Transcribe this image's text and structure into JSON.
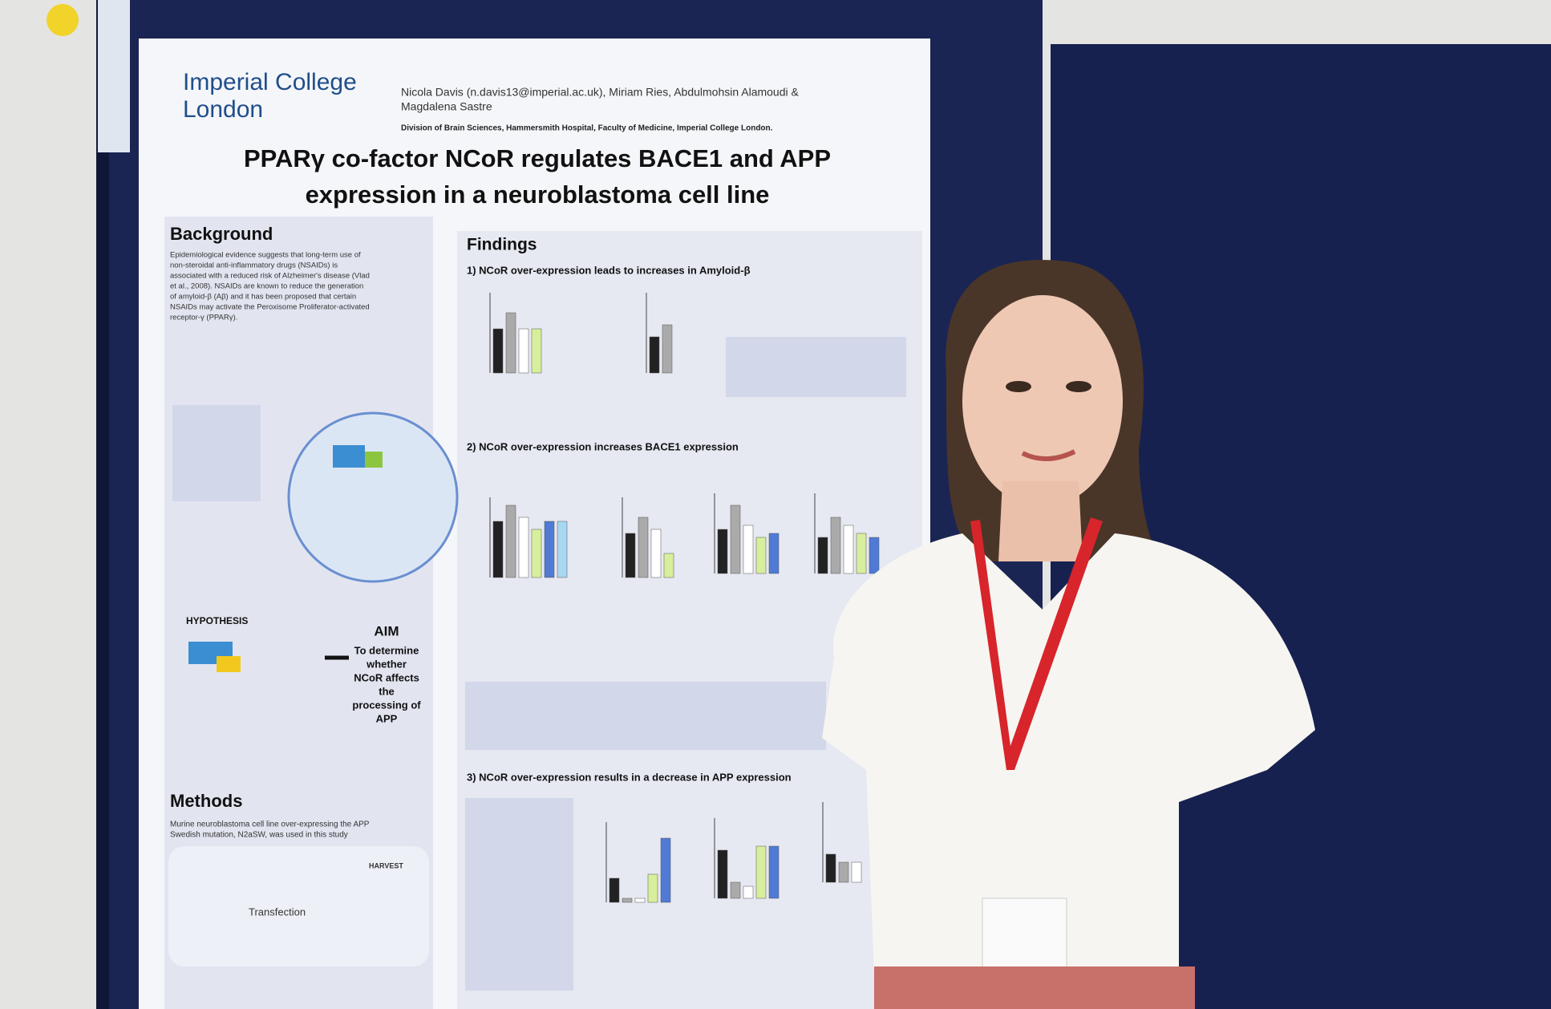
{
  "poster": {
    "logo": [
      "Imperial College",
      "London"
    ],
    "authors": [
      "Nicola Davis (n.davis13@imperial.ac.uk), Miriam Ries, Abdulmohsin Alamoudi &",
      "Magdalena Sastre"
    ],
    "affiliation": "Division of Brain Sciences, Hammersmith Hospital, Faculty of Medicine, Imperial College London.",
    "title": [
      "PPARγ co-factor NCoR regulates BACE1 and APP",
      "expression in a neuroblastoma cell line"
    ],
    "background": {
      "heading": "Background",
      "text": [
        "Epidemiological evidence suggests that long-term use of",
        "non-steroidal anti-inflammatory drugs (NSAIDs) is",
        "associated with a reduced risk of Alzheimer's disease (Vlad",
        "et al., 2008). NSAIDs are known to reduce the generation",
        "of amyloid-β (Aβ) and it has been proposed that certain",
        "NSAIDs may activate the Peroxisome Proliferator-activated",
        "receptor-γ (PPARγ)."
      ]
    },
    "hypothesis": "HYPOTHESIS",
    "aim": {
      "heading": "AIM",
      "text": [
        "To determine",
        "whether",
        "NCoR affects",
        "the",
        "processing of",
        "APP"
      ]
    },
    "methods": {
      "heading": "Methods",
      "text": [
        "Murine neuroblastoma cell line over-expressing the APP",
        "Swedish mutation, N2aSW, was used in this study"
      ],
      "transfection": "Transfection",
      "harvest": "HARVEST"
    },
    "findings": {
      "heading": "Findings",
      "sections": [
        "1) NCoR over-expression leads to increases in Amyloid-β",
        "2) NCoR over-expression increases BACE1 expression",
        "3) NCoR over-expression results in a decrease in APP expression"
      ]
    }
  }
}
